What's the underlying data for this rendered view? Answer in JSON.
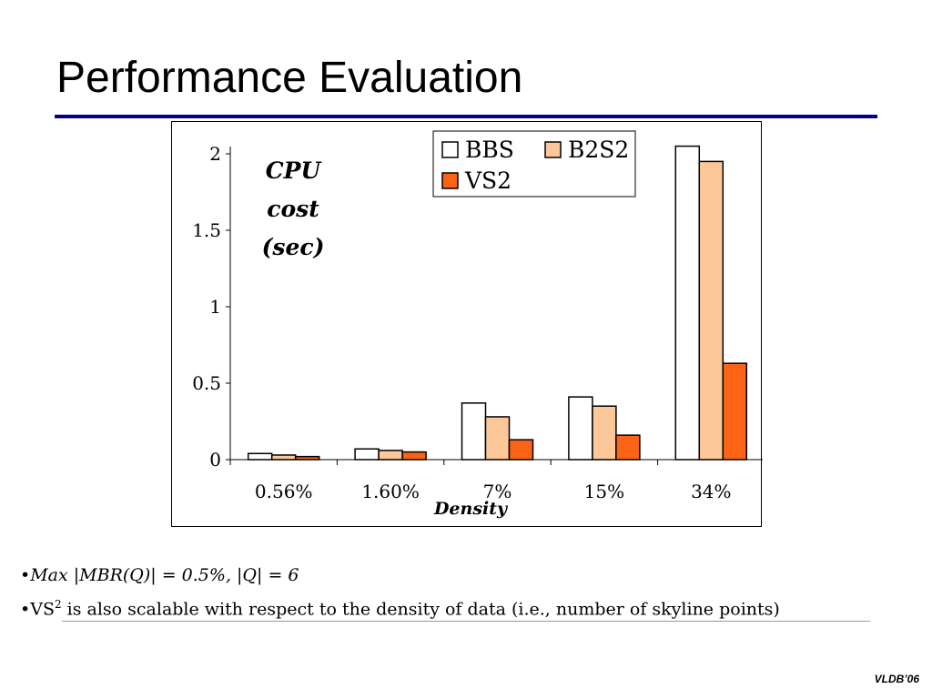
{
  "slide": {
    "title": "Performance Evaluation",
    "footer": "VLDB’06"
  },
  "bullets": [
    {
      "marker": "•",
      "text": "Max |MBR(Q)| = 0.5%, |Q| = 6",
      "style": "italic"
    },
    {
      "marker": "•",
      "prefix": "VS",
      "sup": "2",
      "text": " is also scalable with respect to the density of data (i.e., number of skyline points)",
      "style": "normal"
    }
  ],
  "chart_data": {
    "type": "bar",
    "categories": [
      "0.56%",
      "1.60%",
      "7%",
      "15%",
      "34%"
    ],
    "series": [
      {
        "name": "BBS",
        "values": [
          0.04,
          0.07,
          0.37,
          0.41,
          2.05
        ],
        "color": "#ffffff"
      },
      {
        "name": "B2S2",
        "values": [
          0.03,
          0.06,
          0.28,
          0.35,
          1.95
        ],
        "color": "#fcc89a"
      },
      {
        "name": "VS2",
        "values": [
          0.02,
          0.05,
          0.13,
          0.16,
          0.63
        ],
        "color": "#fa6414"
      }
    ],
    "ylabel": "CPU cost (sec)",
    "ylabel_lines": [
      "CPU",
      "cost",
      "(sec)"
    ],
    "xlabel": "Density",
    "ylim": [
      0,
      2
    ],
    "yticks": [
      "0",
      "0.5",
      "1",
      "1.5",
      "2"
    ],
    "grid": false,
    "legend_position": "top-right"
  }
}
